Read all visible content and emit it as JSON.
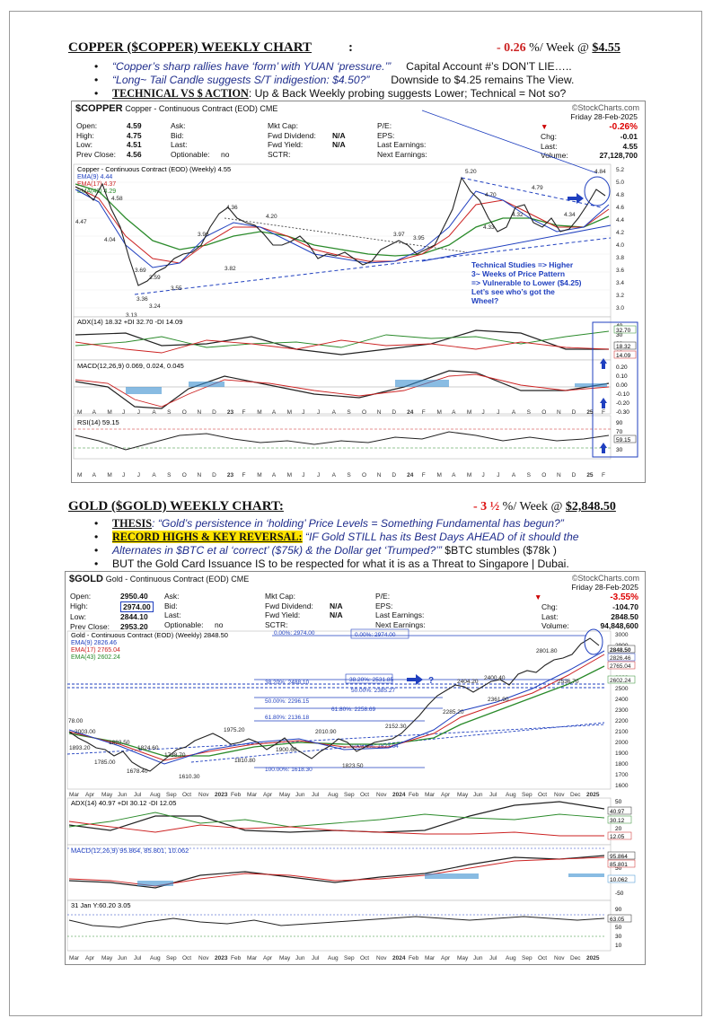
{
  "copper": {
    "title": "COPPER ($COPPER) WEEKLY CHART",
    "colon": ":",
    "change": "- 0.26",
    "per_week": "%/ Week @",
    "price": "$4.55",
    "bullets": [
      {
        "quote": "“Copper’s sharp rallies have ‘form’ with YUAN ‘pressure.’”",
        "tail": "Capital Account #’s DON’T LIE….."
      },
      {
        "quote": "“Long~ Tail Candle suggests S/T indigestion: $4.50?”",
        "tail": "Downside to $4.25 remains The View."
      },
      {
        "lead": "TECHNICAL VS $ ACTION",
        "tail": ": Up & Back Weekly probing suggests Lower; Technical = Not so?"
      }
    ],
    "chart": {
      "symbol": "$COPPER",
      "name": "Copper - Continuous Contract (EOD) CME",
      "stockcharts": "©StockCharts.com",
      "quote_left": [
        [
          "Open:",
          "4.59"
        ],
        [
          "High:",
          "4.75"
        ],
        [
          "Low:",
          "4.51"
        ],
        [
          "Prev Close:",
          "4.56"
        ]
      ],
      "quote_mid": [
        [
          "Ask:",
          ""
        ],
        [
          "Bid:",
          ""
        ],
        [
          "Last:",
          ""
        ],
        [
          "Optionable:",
          "no"
        ]
      ],
      "quote_mid2": [
        [
          "Mkt Cap:",
          ""
        ],
        [
          "Fwd Dividend:",
          "N/A"
        ],
        [
          "Fwd Yield:",
          "N/A"
        ],
        [
          "SCTR:",
          ""
        ]
      ],
      "quote_mid3": [
        "P/E:",
        "EPS:",
        "Last Earnings:",
        "Next Earnings:"
      ],
      "date": "Friday  28-Feb-2025",
      "pct": "-0.26%",
      "chg_label": "Chg:",
      "chg": "-0.01",
      "last_label": "Last:",
      "last": "4.55",
      "vol_label": "Volume:",
      "vol": "27,128,700",
      "legend_main": "Copper - Continuous Contract (EOD) (Weekly) 4.55",
      "ema9": "EMA(9) 4.44",
      "ema17": "EMA(17) 4.37",
      "ema43": "EMA(43) 4.29",
      "annotation": [
        "Technical Studies => Higher",
        "3~ Weeks of Price Pattern",
        "=> Vulnerable to Lower ($4.25)",
        "Let’s see who’s got the",
        "Wheel?"
      ],
      "price_labels": [
        "4.47",
        "4.58",
        "4.04",
        "3.69",
        "3.59",
        "3.36",
        "3.24",
        "3.13",
        "3.55",
        "3.96",
        "4.36",
        "4.20",
        "3.82",
        "3.97",
        "4.02",
        "3.91",
        "3.55",
        "3.68",
        "3.63",
        "3.52",
        "3.97",
        "3.95",
        "3.77",
        "3.65",
        "5.20",
        "4.70",
        "4.33",
        "4.32",
        "4.79",
        "4.04",
        "4.34",
        "3.92",
        "4.00",
        "4.01",
        "4.84"
      ],
      "y_ticks": [
        "5.2",
        "5.0",
        "4.8",
        "4.6",
        "4.4",
        "4.2",
        "4.0",
        "3.8",
        "3.6",
        "3.4",
        "3.2",
        "3.0"
      ],
      "x_ticks": [
        "M",
        "A",
        "M",
        "J",
        "J",
        "A",
        "S",
        "O",
        "N",
        "D",
        "23",
        "F",
        "M",
        "A",
        "M",
        "J",
        "J",
        "A",
        "S",
        "O",
        "N",
        "D",
        "24",
        "F",
        "M",
        "A",
        "M",
        "J",
        "J",
        "A",
        "S",
        "O",
        "N",
        "D",
        "25",
        "F"
      ],
      "adx": "ADX(14) 18.32 +DI 32.70 -DI 14.09",
      "adx_ticks": [
        "40",
        "30",
        "20",
        "10"
      ],
      "adx_vals": [
        "32.70",
        "18.32",
        "14.09"
      ],
      "macd": "MACD(12,26,9) 0.069, 0.024, 0.045",
      "macd_ticks": [
        "0.20",
        "0.10",
        "0.00",
        "-0.10",
        "-0.20",
        "-0.30"
      ],
      "rsi": "RSI(14) 59.15",
      "rsi_ticks": [
        "90",
        "70",
        "50",
        "30"
      ],
      "rsi_val": "59.15"
    }
  },
  "gold": {
    "title": "GOLD ($GOLD) WEEKLY CHART:",
    "change": "- 3 ½",
    "per_week": "%/ Week @",
    "price": "$2,848.50",
    "bullets": [
      {
        "lead": "THESIS",
        "quote": ": “Gold’s persistence in ‘holding’ Price Levels = Something Fundamental has begun?”"
      },
      {
        "lead": "RECORD HIGHS & KEY REVERSAL:",
        "quote": " “IF Gold STILL has its Best Days AHEAD of it should the",
        "line2_quote": "Alternates in $BTC et al ‘correct’ ($75k) & the Dollar get ‘Trumped?’”",
        "line2_tail": " $BTC stumbles ($78k )",
        "line3": "BUT the Gold Card Issuance IS to be respected for what it is as a Threat to Singapore | Dubai."
      }
    ],
    "chart": {
      "symbol": "$GOLD",
      "name": "Gold - Continuous Contract (EOD) CME",
      "stockcharts": "©StockCharts.com",
      "quote_left": [
        [
          "Open:",
          "2950.40"
        ],
        [
          "High:",
          "2974.00"
        ],
        [
          "Low:",
          "2844.10"
        ],
        [
          "Prev Close:",
          "2953.20"
        ]
      ],
      "quote_mid": [
        [
          "Ask:",
          ""
        ],
        [
          "Bid:",
          ""
        ],
        [
          "Last:",
          ""
        ],
        [
          "Optionable:",
          "no"
        ]
      ],
      "quote_mid2": [
        [
          "Mkt Cap:",
          ""
        ],
        [
          "Fwd Dividend:",
          "N/A"
        ],
        [
          "Fwd Yield:",
          "N/A"
        ],
        [
          "SCTR:",
          ""
        ]
      ],
      "quote_mid3": [
        "P/E:",
        "EPS:",
        "Last Earnings:",
        "Next Earnings:"
      ],
      "date": "Friday  28-Feb-2025",
      "pct": "-3.55%",
      "chg_label": "Chg:",
      "chg": "-104.70",
      "last_label": "Last:",
      "last": "2848.50",
      "vol_label": "Volume:",
      "vol": "94,848,600",
      "legend_main": "Gold - Continuous Contract (EOD) (Weekly) 2848.50",
      "ema9": "EMA(9) 2826.46",
      "ema17": "EMA(17) 2765.04",
      "ema43": "EMA(43) 2602.24",
      "fib": [
        "0.00%: 2974.00",
        "0.00%: 2974.00",
        "38.20%: 2531.85",
        "38.20%: 2488.10",
        "50.00%: 2296.15",
        "50.00%: 2385.27",
        "61.80%: 2258.69",
        "61.80%: 2136.18",
        "100.00%: 1618.30",
        "100.00%: 1823.64"
      ],
      "price_labels": [
        "78.00",
        "2003.00",
        "1893.20",
        "1882.50",
        "1785.00",
        "1824.60",
        "1678.40",
        "1738.70",
        "1610.30",
        "1975.20",
        "1810.80",
        "2061.20",
        "1900.60",
        "2010.90",
        "1823.50",
        "1987.00",
        "2152.30",
        "2285.20",
        "2404.20",
        "2400.40",
        "2361.90",
        "2536.70",
        "2801.80"
      ],
      "y_ticks": [
        "3000",
        "2900",
        "2800",
        "2700",
        "2600",
        "2500",
        "2400",
        "2300",
        "2200",
        "2100",
        "2000",
        "1900",
        "1800",
        "1700",
        "1600"
      ],
      "y_vals": [
        "2848.50",
        "2826.46",
        "2765.04",
        "2602.24"
      ],
      "x_ticks": [
        "Mar",
        "Apr",
        "May",
        "Jun",
        "Jul",
        "Aug",
        "Sep",
        "Oct",
        "Nov",
        "2023",
        "Feb",
        "Mar",
        "Apr",
        "May",
        "Jun",
        "Jul",
        "Aug",
        "Sep",
        "Oct",
        "Nov",
        "2024",
        "Feb",
        "Mar",
        "Apr",
        "May",
        "Jun",
        "Jul",
        "Aug",
        "Sep",
        "Oct",
        "Nov",
        "Dec",
        "2025"
      ],
      "adx": "ADX(14) 40.97 +DI 30.12 -DI 12.05",
      "adx_ticks": [
        "50",
        "40",
        "30",
        "20",
        "10"
      ],
      "adx_vals": [
        "40.97",
        "30.12",
        "12.05"
      ],
      "macd": "MACD(12,26,9) 95.864, 85.801, 10.062",
      "macd_ticks": [
        "100",
        "50",
        "0",
        "-50"
      ],
      "macd_vals": [
        "95.864",
        "85.801",
        "10.062"
      ],
      "rsi": "31 Jan Y:60.20 3.05",
      "rsi_ticks": [
        "90",
        "70",
        "50",
        "30",
        "10"
      ],
      "rsi_val": "63.05"
    }
  }
}
